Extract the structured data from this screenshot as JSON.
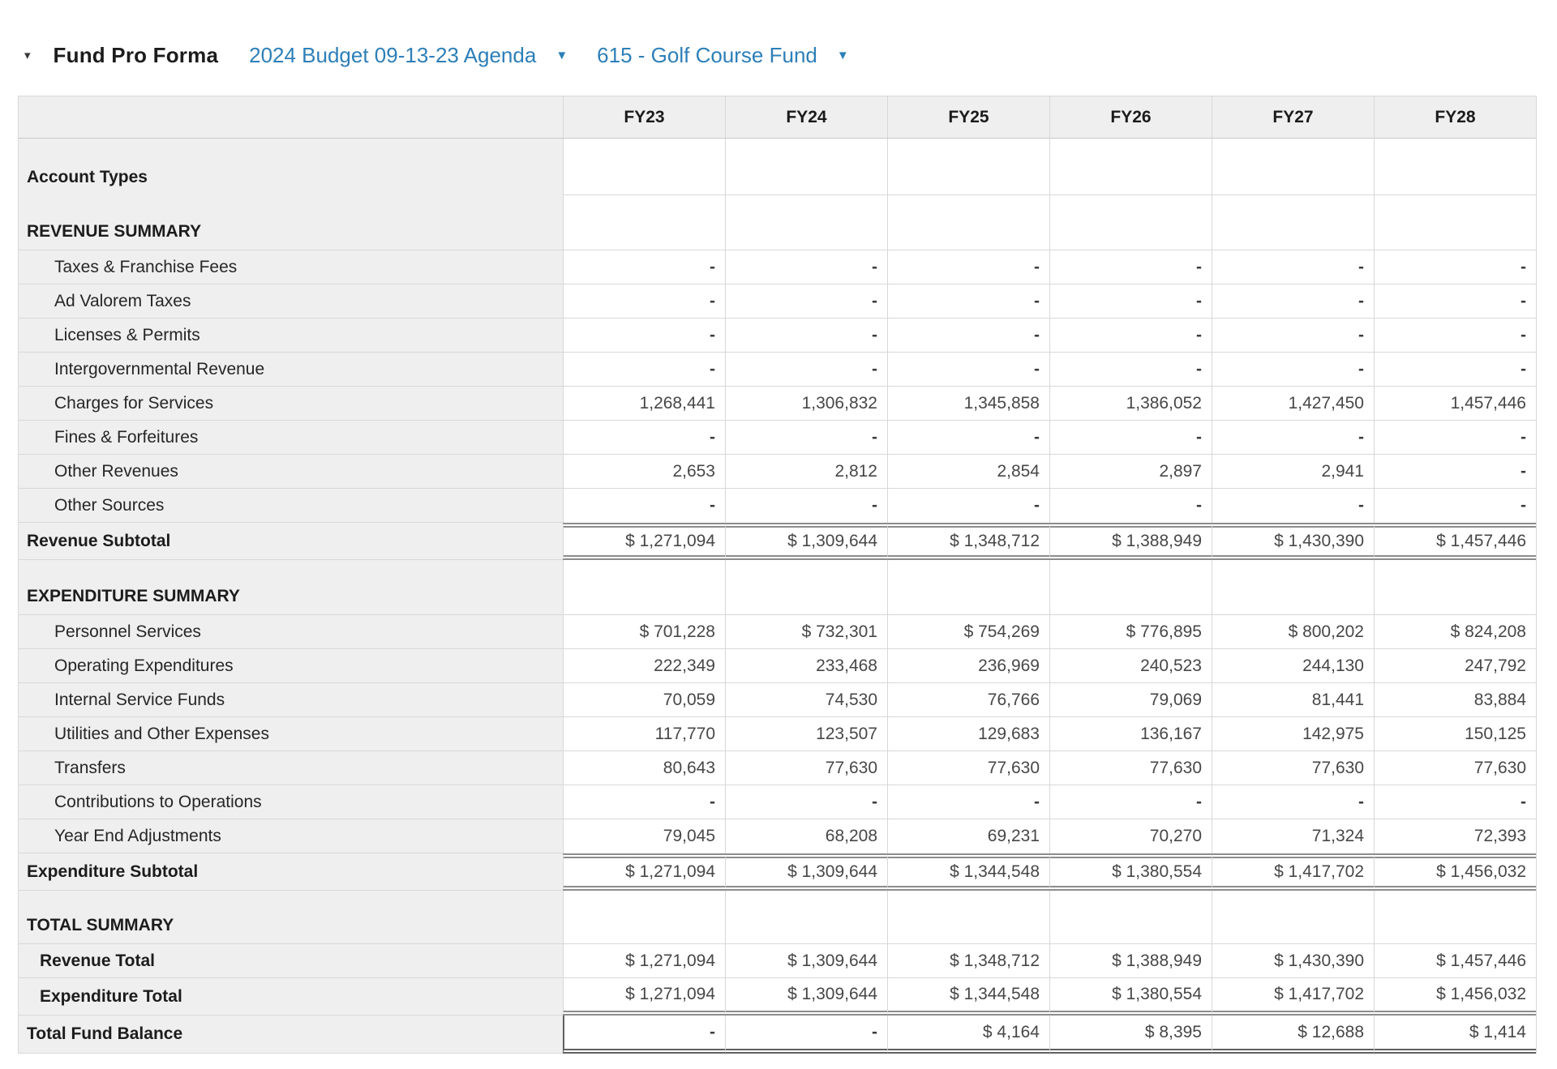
{
  "header": {
    "collapse_icon": "▾",
    "caret_icon": "▼",
    "title": "Fund Pro Forma",
    "budget_selector": "2024 Budget 09-13-23 Agenda",
    "fund_selector": "615 - Golf Course Fund",
    "link_color": "#2d7fb8"
  },
  "table": {
    "columns": [
      "FY23",
      "FY24",
      "FY25",
      "FY26",
      "FY27",
      "FY28"
    ],
    "rows": [
      {
        "style": "section-first",
        "label": "Account Types",
        "values": [
          "",
          "",
          "",
          "",
          "",
          ""
        ],
        "no_label_border": true
      },
      {
        "style": "section",
        "label": "REVENUE SUMMARY",
        "values": [
          "",
          "",
          "",
          "",
          "",
          ""
        ]
      },
      {
        "style": "detail",
        "label": "Taxes & Franchise Fees",
        "values": [
          "-",
          "-",
          "-",
          "-",
          "-",
          "-"
        ]
      },
      {
        "style": "detail",
        "label": "Ad Valorem Taxes",
        "values": [
          "-",
          "-",
          "-",
          "-",
          "-",
          "-"
        ]
      },
      {
        "style": "detail",
        "label": "Licenses & Permits",
        "values": [
          "-",
          "-",
          "-",
          "-",
          "-",
          "-"
        ]
      },
      {
        "style": "detail",
        "label": "Intergovernmental Revenue",
        "values": [
          "-",
          "-",
          "-",
          "-",
          "-",
          "-"
        ]
      },
      {
        "style": "detail",
        "label": "Charges for Services",
        "values": [
          "1,268,441",
          "1,306,832",
          "1,345,858",
          "1,386,052",
          "1,427,450",
          "1,457,446"
        ]
      },
      {
        "style": "detail",
        "label": "Fines & Forfeitures",
        "values": [
          "-",
          "-",
          "-",
          "-",
          "-",
          "-"
        ]
      },
      {
        "style": "detail",
        "label": "Other Revenues",
        "values": [
          "2,653",
          "2,812",
          "2,854",
          "2,897",
          "2,941",
          "-"
        ]
      },
      {
        "style": "detail",
        "label": "Other Sources",
        "values": [
          "-",
          "-",
          "-",
          "-",
          "-",
          "-"
        ],
        "no_bottom": true
      },
      {
        "style": "subtotal",
        "label": "Revenue Subtotal",
        "values": [
          "$ 1,271,094",
          "$ 1,309,644",
          "$ 1,348,712",
          "$ 1,388,949",
          "$ 1,430,390",
          "$ 1,457,446"
        ],
        "dbl_top": true,
        "dbl_bottom": true
      },
      {
        "style": "section",
        "label": "EXPENDITURE SUMMARY",
        "values": [
          "",
          "",
          "",
          "",
          "",
          ""
        ]
      },
      {
        "style": "detail",
        "label": "Personnel Services",
        "values": [
          "$ 701,228",
          "$ 732,301",
          "$ 754,269",
          "$ 776,895",
          "$ 800,202",
          "$ 824,208"
        ]
      },
      {
        "style": "detail",
        "label": "Operating Expenditures",
        "values": [
          "222,349",
          "233,468",
          "236,969",
          "240,523",
          "244,130",
          "247,792"
        ]
      },
      {
        "style": "detail",
        "label": "Internal Service Funds",
        "values": [
          "70,059",
          "74,530",
          "76,766",
          "79,069",
          "81,441",
          "83,884"
        ]
      },
      {
        "style": "detail",
        "label": "Utilities and Other Expenses",
        "values": [
          "117,770",
          "123,507",
          "129,683",
          "136,167",
          "142,975",
          "150,125"
        ]
      },
      {
        "style": "detail",
        "label": "Transfers",
        "values": [
          "80,643",
          "77,630",
          "77,630",
          "77,630",
          "77,630",
          "77,630"
        ]
      },
      {
        "style": "detail",
        "label": "Contributions to Operations",
        "values": [
          "-",
          "-",
          "-",
          "-",
          "-",
          "-"
        ]
      },
      {
        "style": "detail",
        "label": "Year End Adjustments",
        "values": [
          "79,045",
          "68,208",
          "69,231",
          "70,270",
          "71,324",
          "72,393"
        ],
        "no_bottom": true
      },
      {
        "style": "subtotal",
        "label": "Expenditure Subtotal",
        "values": [
          "$ 1,271,094",
          "$ 1,309,644",
          "$ 1,344,548",
          "$ 1,380,554",
          "$ 1,417,702",
          "$ 1,456,032"
        ],
        "dbl_top": true,
        "dbl_bottom": true
      },
      {
        "style": "section-total",
        "label": "TOTAL SUMMARY",
        "values": [
          "",
          "",
          "",
          "",
          "",
          ""
        ]
      },
      {
        "style": "total",
        "label": "Revenue Total",
        "values": [
          "$ 1,271,094",
          "$ 1,309,644",
          "$ 1,348,712",
          "$ 1,388,949",
          "$ 1,430,390",
          "$ 1,457,446"
        ]
      },
      {
        "style": "total",
        "label": "Expenditure Total",
        "values": [
          "$ 1,271,094",
          "$ 1,309,644",
          "$ 1,344,548",
          "$ 1,380,554",
          "$ 1,417,702",
          "$ 1,456,032"
        ],
        "dbl_bottom": true
      },
      {
        "style": "balance",
        "label": "Total Fund Balance",
        "values": [
          "-",
          "-",
          "$ 4,164",
          "$ 8,395",
          "$ 12,688",
          "$ 1,414"
        ],
        "dbl_bottom_dark": true,
        "dark_left": true
      }
    ]
  }
}
